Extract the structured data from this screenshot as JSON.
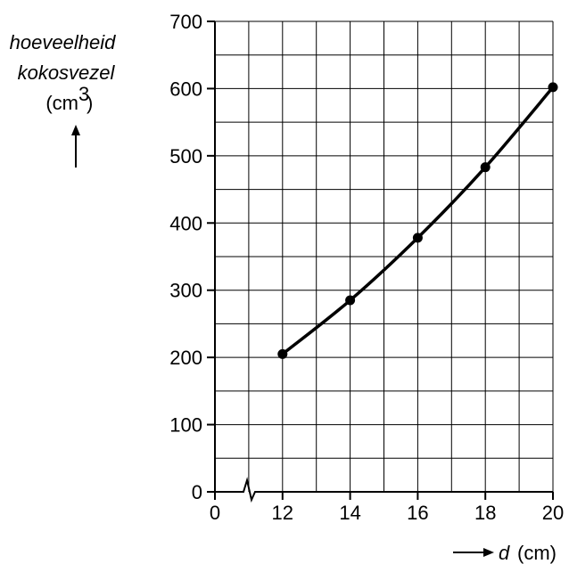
{
  "chart_data": {
    "type": "line",
    "ylabel_lines": [
      "hoeveelheid",
      "kokosvezel"
    ],
    "ylabel_unit_base": "(cm",
    "ylabel_unit_sup": "3",
    "ylabel_unit_close": ")",
    "xlabel_var": "d",
    "xlabel_unit": "(cm)",
    "x_broken_axis": true,
    "x_ticks": [
      "0",
      "12",
      "14",
      "16",
      "18",
      "20"
    ],
    "x_tick_values": [
      10,
      12,
      14,
      16,
      18,
      20
    ],
    "y_ticks": [
      "0",
      "100",
      "200",
      "300",
      "400",
      "500",
      "600",
      "700"
    ],
    "y_tick_values": [
      0,
      100,
      200,
      300,
      400,
      500,
      600,
      700
    ],
    "xlim": [
      10,
      20
    ],
    "ylim": [
      0,
      700
    ],
    "grid": true,
    "x_minor_step": 1,
    "y_minor_step": 50,
    "series": [
      {
        "values": [
          {
            "x": 12,
            "y": 205
          },
          {
            "x": 14,
            "y": 285
          },
          {
            "x": 16,
            "y": 378
          },
          {
            "x": 18,
            "y": 483
          },
          {
            "x": 20,
            "y": 602
          }
        ]
      }
    ]
  }
}
